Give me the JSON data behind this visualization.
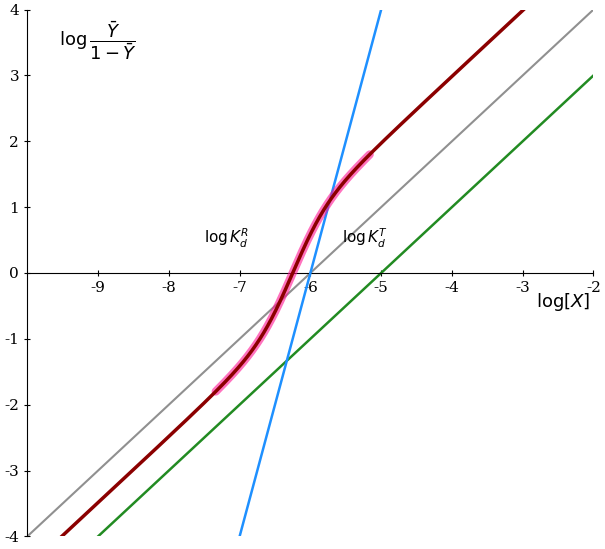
{
  "xlim": [
    -10,
    -2
  ],
  "ylim": [
    -4,
    4
  ],
  "xticks": [
    -9,
    -8,
    -7,
    -6,
    -5,
    -4,
    -3,
    -2
  ],
  "yticks": [
    -4,
    -3,
    -2,
    -1,
    0,
    1,
    2,
    3,
    4
  ],
  "log_KdR": -7.0,
  "log_KdT": -5.5,
  "n": 4,
  "L": 1000,
  "background_color": "#ffffff",
  "line_color_dark_red": "#8B0000",
  "line_color_pink": "#FF1493",
  "line_color_blue": "#1E90FF",
  "line_color_gray": "#909090",
  "line_color_green": "#228B22",
  "figsize": [
    6.05,
    5.49
  ],
  "dpi": 100,
  "gray_x0": -6.0,
  "green_x0": -5.0,
  "blue_x0": -6.0,
  "blue_slope": 4
}
